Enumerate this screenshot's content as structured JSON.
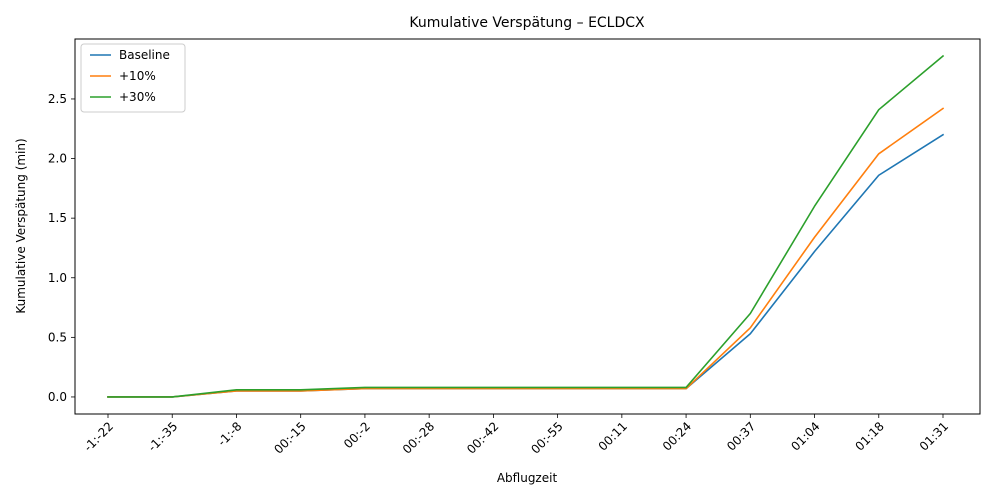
{
  "chart_data": {
    "type": "line",
    "title": "Kumulative Verspätung – ECLDCX",
    "xlabel": "Abflugzeit",
    "ylabel": "Kumulative Verspätung (min)",
    "categories": [
      "-1:-22",
      "-1:-35",
      "-1:-8",
      "00:-15",
      "00:-2",
      "00:-28",
      "00:-42",
      "00:-55",
      "00:11",
      "00:24",
      "00:37",
      "01:04",
      "01:18",
      "01:31"
    ],
    "series": [
      {
        "name": "Baseline",
        "color": "#1f77b4",
        "values": [
          0.0,
          0.0,
          0.05,
          0.05,
          0.07,
          0.07,
          0.07,
          0.07,
          0.07,
          0.07,
          0.53,
          1.22,
          1.86,
          2.2
        ]
      },
      {
        "name": "+10%",
        "color": "#ff7f0e",
        "values": [
          0.0,
          0.0,
          0.05,
          0.05,
          0.07,
          0.07,
          0.07,
          0.07,
          0.07,
          0.07,
          0.58,
          1.34,
          2.04,
          2.42
        ]
      },
      {
        "name": "+30%",
        "color": "#2ca02c",
        "values": [
          0.0,
          0.0,
          0.06,
          0.06,
          0.08,
          0.08,
          0.08,
          0.08,
          0.08,
          0.08,
          0.7,
          1.6,
          2.41,
          2.86
        ]
      }
    ],
    "yticks": [
      "0.0",
      "0.5",
      "1.0",
      "1.5",
      "2.0",
      "2.5"
    ],
    "ylim": [
      -0.143,
      3.003
    ],
    "grid": false,
    "legend_position": "top-left"
  }
}
